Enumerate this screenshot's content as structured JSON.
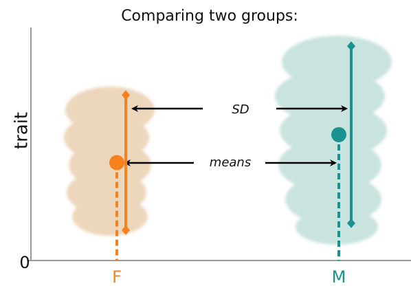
{
  "chart_data": {
    "type": "mean-sd",
    "title": "Comparing two groups:",
    "y_label": "trait",
    "categories": [
      "F",
      "M"
    ],
    "series": [
      {
        "name": "F",
        "color": "#f7811c",
        "mean": 4.2,
        "sd": 2.9
      },
      {
        "name": "M",
        "color": "#1a9390",
        "mean": 5.4,
        "sd": 3.8
      }
    ],
    "annotations": [
      "SD",
      "means"
    ],
    "ylim": [
      0,
      10
    ],
    "yticks": [
      0
    ]
  }
}
